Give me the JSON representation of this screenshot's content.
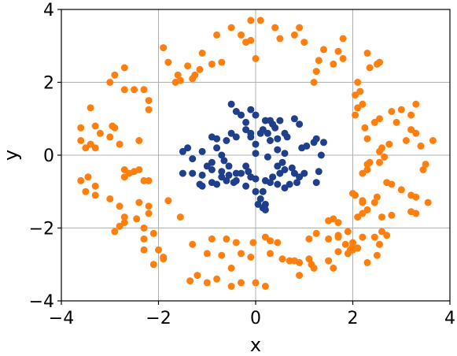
{
  "chart_data": {
    "type": "scatter",
    "title": "",
    "xlabel": "x",
    "ylabel": "y",
    "xlim": [
      -4,
      4
    ],
    "ylim": [
      -4,
      4
    ],
    "xticks": [
      -4,
      -2,
      0,
      2,
      4
    ],
    "yticks": [
      -4,
      -2,
      0,
      2,
      4
    ],
    "xtick_labels": [
      "−4",
      "−2",
      "0",
      "2",
      "4"
    ],
    "ytick_labels": [
      "−4",
      "−2",
      "0",
      "2",
      "4"
    ],
    "grid": true,
    "legend": "none",
    "series": [
      {
        "color": "#ff7f0e",
        "points": [
          [
            -0.1,
            3.7
          ],
          [
            0.1,
            3.7
          ],
          [
            -0.5,
            3.5
          ],
          [
            0.4,
            3.5
          ],
          [
            -0.8,
            3.3
          ],
          [
            0.8,
            3.3
          ],
          [
            -0.3,
            3.3
          ],
          [
            0.5,
            3.2
          ],
          [
            -0.2,
            3.1
          ],
          [
            -0.1,
            3.15
          ],
          [
            0.9,
            3.5
          ],
          [
            1.0,
            3.1
          ],
          [
            -1.1,
            2.8
          ],
          [
            1.8,
            3.2
          ],
          [
            1.4,
            2.9
          ],
          [
            1.7,
            2.85
          ],
          [
            -1.4,
            2.45
          ],
          [
            -1.6,
            2.2
          ],
          [
            -1.65,
            2.0
          ],
          [
            -1.55,
            2.05
          ],
          [
            -1.8,
            2.55
          ],
          [
            -1.9,
            2.95
          ],
          [
            0.0,
            2.65
          ],
          [
            1.8,
            2.65
          ],
          [
            1.6,
            2.5
          ],
          [
            1.3,
            2.6
          ],
          [
            1.25,
            2.3
          ],
          [
            -1.25,
            2.2
          ],
          [
            -1.15,
            2.35
          ],
          [
            -1.3,
            2.1
          ],
          [
            -0.9,
            2.5
          ],
          [
            -0.7,
            2.55
          ],
          [
            2.3,
            2.8
          ],
          [
            2.5,
            2.5
          ],
          [
            2.55,
            2.55
          ],
          [
            2.35,
            2.4
          ],
          [
            2.1,
            2.0
          ],
          [
            2.15,
            1.75
          ],
          [
            1.2,
            2.0
          ],
          [
            2.1,
            1.3
          ],
          [
            2.2,
            1.4
          ],
          [
            2.8,
            1.2
          ],
          [
            3.0,
            1.25
          ],
          [
            3.3,
            1.4
          ],
          [
            3.2,
            1.1
          ],
          [
            2.05,
            1.65
          ],
          [
            -2.9,
            2.2
          ],
          [
            -3.0,
            2.0
          ],
          [
            -2.7,
            1.8
          ],
          [
            -2.5,
            1.8
          ],
          [
            -2.3,
            1.8
          ],
          [
            -2.2,
            1.5
          ],
          [
            -2.2,
            1.25
          ],
          [
            -2.7,
            2.4
          ],
          [
            -3.4,
            1.3
          ],
          [
            -3.6,
            0.75
          ],
          [
            -3.3,
            0.8
          ],
          [
            -2.9,
            0.75
          ],
          [
            -2.4,
            0.4
          ],
          [
            -2.8,
            0.3
          ],
          [
            -3.0,
            0.5
          ],
          [
            -3.2,
            0.6
          ],
          [
            -3.4,
            0.3
          ],
          [
            -3.5,
            0.2
          ],
          [
            -3.3,
            0.2
          ],
          [
            -3.6,
            0.4
          ],
          [
            -2.95,
            0.8
          ],
          [
            -2.7,
            -0.4
          ],
          [
            -2.4,
            -0.4
          ],
          [
            -2.5,
            -0.45
          ],
          [
            -2.6,
            -0.5
          ],
          [
            -2.7,
            -0.6
          ],
          [
            -2.3,
            -0.7
          ],
          [
            -2.2,
            -0.7
          ],
          [
            -3.45,
            -0.6
          ],
          [
            -3.3,
            -0.85
          ],
          [
            -3.6,
            -0.7
          ],
          [
            -3.5,
            -1.0
          ],
          [
            -3.3,
            -1.1
          ],
          [
            -3.0,
            -1.2
          ],
          [
            -2.8,
            -1.4
          ],
          [
            -2.2,
            -1.4
          ],
          [
            -2.4,
            -1.3
          ],
          [
            -2.2,
            -1.6
          ],
          [
            -2.7,
            -1.7
          ],
          [
            -2.7,
            -1.85
          ],
          [
            -2.8,
            -1.95
          ],
          [
            -2.9,
            -2.1
          ],
          [
            -2.45,
            -1.75
          ],
          [
            -2.3,
            -2.0
          ],
          [
            -1.8,
            -1.25
          ],
          [
            -1.55,
            -1.7
          ],
          [
            -2.1,
            -2.15
          ],
          [
            -2.3,
            -2.3
          ],
          [
            -2.0,
            -2.6
          ],
          [
            -1.9,
            -2.8
          ],
          [
            -1.9,
            -2.85
          ],
          [
            -2.3,
            -2.6
          ],
          [
            -2.1,
            -3.0
          ],
          [
            -1.3,
            -2.45
          ],
          [
            -0.9,
            -2.3
          ],
          [
            -0.6,
            -2.3
          ],
          [
            -0.4,
            -2.4
          ],
          [
            -0.05,
            -2.4
          ],
          [
            0.2,
            -2.25
          ],
          [
            0.3,
            -2.35
          ],
          [
            0.45,
            -2.4
          ],
          [
            -0.3,
            -2.7
          ],
          [
            -0.1,
            -2.8
          ],
          [
            0.3,
            -2.7
          ],
          [
            0.55,
            -2.85
          ],
          [
            0.7,
            -2.9
          ],
          [
            0.8,
            -2.9
          ],
          [
            0.9,
            -2.95
          ],
          [
            -1.0,
            -2.7
          ],
          [
            -0.7,
            -2.75
          ],
          [
            -0.5,
            -3.1
          ],
          [
            -0.8,
            -3.4
          ],
          [
            -1.2,
            -3.3
          ],
          [
            -1.35,
            -3.45
          ],
          [
            -1.0,
            -3.5
          ],
          [
            -0.5,
            -3.6
          ],
          [
            -0.3,
            -3.5
          ],
          [
            0.0,
            -3.5
          ],
          [
            0.2,
            -3.6
          ],
          [
            0.9,
            -3.3
          ],
          [
            1.1,
            -2.85
          ],
          [
            1.15,
            -3.0
          ],
          [
            1.2,
            -3.1
          ],
          [
            1.5,
            -2.9
          ],
          [
            1.6,
            -3.1
          ],
          [
            1.1,
            -2.3
          ],
          [
            1.25,
            -2.15
          ],
          [
            1.5,
            -2.3
          ],
          [
            1.7,
            -2.2
          ],
          [
            1.7,
            -2.25
          ],
          [
            1.9,
            -2.1
          ],
          [
            2.0,
            -2.4
          ],
          [
            2.1,
            -2.55
          ],
          [
            1.95,
            -2.6
          ],
          [
            1.85,
            -2.45
          ],
          [
            2.2,
            -2.25
          ],
          [
            2.45,
            -2.25
          ],
          [
            2.55,
            -2.45
          ],
          [
            2.5,
            -2.75
          ],
          [
            2.3,
            -2.95
          ],
          [
            2.6,
            -2.1
          ],
          [
            2.7,
            -2.2
          ],
          [
            2.0,
            -2.5
          ],
          [
            1.7,
            -2.65
          ],
          [
            1.9,
            -2.7
          ],
          [
            2.0,
            -2.6
          ],
          [
            2.1,
            -1.7
          ],
          [
            2.2,
            -1.6
          ],
          [
            1.5,
            -1.8
          ],
          [
            1.6,
            -1.75
          ],
          [
            1.7,
            -1.85
          ],
          [
            2.6,
            -1.7
          ],
          [
            2.8,
            -1.65
          ],
          [
            3.2,
            -1.55
          ],
          [
            3.3,
            -1.6
          ],
          [
            2.2,
            -1.25
          ],
          [
            2.2,
            -1.3
          ],
          [
            2.5,
            -1.15
          ],
          [
            2.45,
            -1.3
          ],
          [
            2.3,
            -1.5
          ],
          [
            3.2,
            -1.1
          ],
          [
            3.3,
            -1.15
          ],
          [
            3.55,
            -1.3
          ],
          [
            2.0,
            -1.05
          ],
          [
            2.05,
            -1.1
          ],
          [
            3.0,
            -0.95
          ],
          [
            2.8,
            -0.8
          ],
          [
            2.7,
            -0.75
          ],
          [
            2.2,
            -0.5
          ],
          [
            2.3,
            -0.4
          ],
          [
            2.35,
            -0.2
          ],
          [
            2.3,
            -0.25
          ],
          [
            2.55,
            -0.2
          ],
          [
            2.65,
            -0.05
          ],
          [
            2.55,
            0.1
          ],
          [
            2.75,
            0.3
          ],
          [
            3.4,
            0.25
          ],
          [
            3.5,
            -0.25
          ],
          [
            3.45,
            -0.4
          ],
          [
            3.65,
            0.4
          ],
          [
            2.3,
            0.45
          ],
          [
            2.25,
            0.75
          ],
          [
            2.45,
            0.9
          ],
          [
            2.55,
            1.0
          ],
          [
            2.9,
            0.9
          ],
          [
            3.2,
            0.7
          ],
          [
            3.3,
            0.6
          ],
          [
            3.1,
            0.4
          ],
          [
            2.05,
            1.1
          ],
          [
            2.6,
            0.2
          ]
        ]
      },
      {
        "color": "#1f3f8c",
        "points": [
          [
            -0.5,
            1.4
          ],
          [
            -0.4,
            1.2
          ],
          [
            -0.3,
            1.1
          ],
          [
            -0.1,
            1.25
          ],
          [
            0.0,
            1.1
          ],
          [
            0.2,
            0.95
          ],
          [
            0.3,
            0.95
          ],
          [
            0.5,
            0.95
          ],
          [
            -0.2,
            0.9
          ],
          [
            0.35,
            0.85
          ],
          [
            0.8,
            1.0
          ],
          [
            0.9,
            0.85
          ],
          [
            0.4,
            0.75
          ],
          [
            0.15,
            0.7
          ],
          [
            0.25,
            0.6
          ],
          [
            0.45,
            0.45
          ],
          [
            0.6,
            0.6
          ],
          [
            0.65,
            0.5
          ],
          [
            -0.5,
            0.6
          ],
          [
            -0.4,
            0.5
          ],
          [
            -0.2,
            0.7
          ],
          [
            -0.1,
            0.6
          ],
          [
            0.1,
            0.6
          ],
          [
            -0.6,
            0.4
          ],
          [
            -0.8,
            0.45
          ],
          [
            -0.9,
            0.5
          ],
          [
            -0.8,
            0.2
          ],
          [
            -0.7,
            0.0
          ],
          [
            -0.65,
            -0.15
          ],
          [
            -0.9,
            -0.2
          ],
          [
            -1.1,
            0.1
          ],
          [
            -1.0,
            -0.3
          ],
          [
            -1.3,
            -0.1
          ],
          [
            -1.5,
            0.1
          ],
          [
            -1.4,
            0.2
          ],
          [
            -1.5,
            -0.5
          ],
          [
            -1.3,
            -0.5
          ],
          [
            -1.15,
            -0.8
          ],
          [
            -1.1,
            -0.85
          ],
          [
            -0.9,
            -0.75
          ],
          [
            -0.8,
            -0.8
          ],
          [
            -0.7,
            -0.6
          ],
          [
            -0.55,
            -0.55
          ],
          [
            -0.4,
            -0.5
          ],
          [
            -0.45,
            -0.75
          ],
          [
            -0.3,
            -0.5
          ],
          [
            -0.15,
            -0.45
          ],
          [
            -0.1,
            -0.6
          ],
          [
            0.0,
            -0.65
          ],
          [
            0.2,
            -0.7
          ],
          [
            0.35,
            -0.6
          ],
          [
            0.5,
            -0.5
          ],
          [
            0.6,
            -0.4
          ],
          [
            0.75,
            -0.35
          ],
          [
            0.8,
            -0.5
          ],
          [
            0.9,
            -0.6
          ],
          [
            1.0,
            -0.5
          ],
          [
            0.85,
            -0.75
          ],
          [
            0.7,
            -0.8
          ],
          [
            0.6,
            -0.9
          ],
          [
            0.45,
            -0.8
          ],
          [
            0.3,
            -0.75
          ],
          [
            0.15,
            -1.0
          ],
          [
            0.1,
            -1.2
          ],
          [
            0.15,
            -1.45
          ],
          [
            0.2,
            -1.35
          ],
          [
            0.05,
            -1.35
          ],
          [
            0.2,
            -1.5
          ],
          [
            0.0,
            -1.0
          ],
          [
            -0.2,
            -0.85
          ],
          [
            -0.4,
            -0.7
          ],
          [
            -0.6,
            -0.7
          ],
          [
            -0.7,
            -0.45
          ],
          [
            -0.55,
            -0.3
          ],
          [
            -0.9,
            -0.4
          ],
          [
            -1.1,
            -0.55
          ],
          [
            1.2,
            0.35
          ],
          [
            1.25,
            0.45
          ],
          [
            1.4,
            0.35
          ],
          [
            1.05,
            0.25
          ],
          [
            0.95,
            0.2
          ],
          [
            1.35,
            0.0
          ],
          [
            1.3,
            -0.45
          ],
          [
            1.25,
            -0.75
          ],
          [
            0.45,
            -0.3
          ],
          [
            0.55,
            -0.2
          ],
          [
            0.6,
            0.05
          ],
          [
            0.45,
            0.15
          ],
          [
            -0.1,
            0.5
          ],
          [
            0.0,
            0.3
          ],
          [
            0.25,
            -0.05
          ],
          [
            -0.2,
            -0.3
          ],
          [
            0.0,
            0.05
          ],
          [
            0.3,
            0.4
          ]
        ]
      }
    ]
  }
}
